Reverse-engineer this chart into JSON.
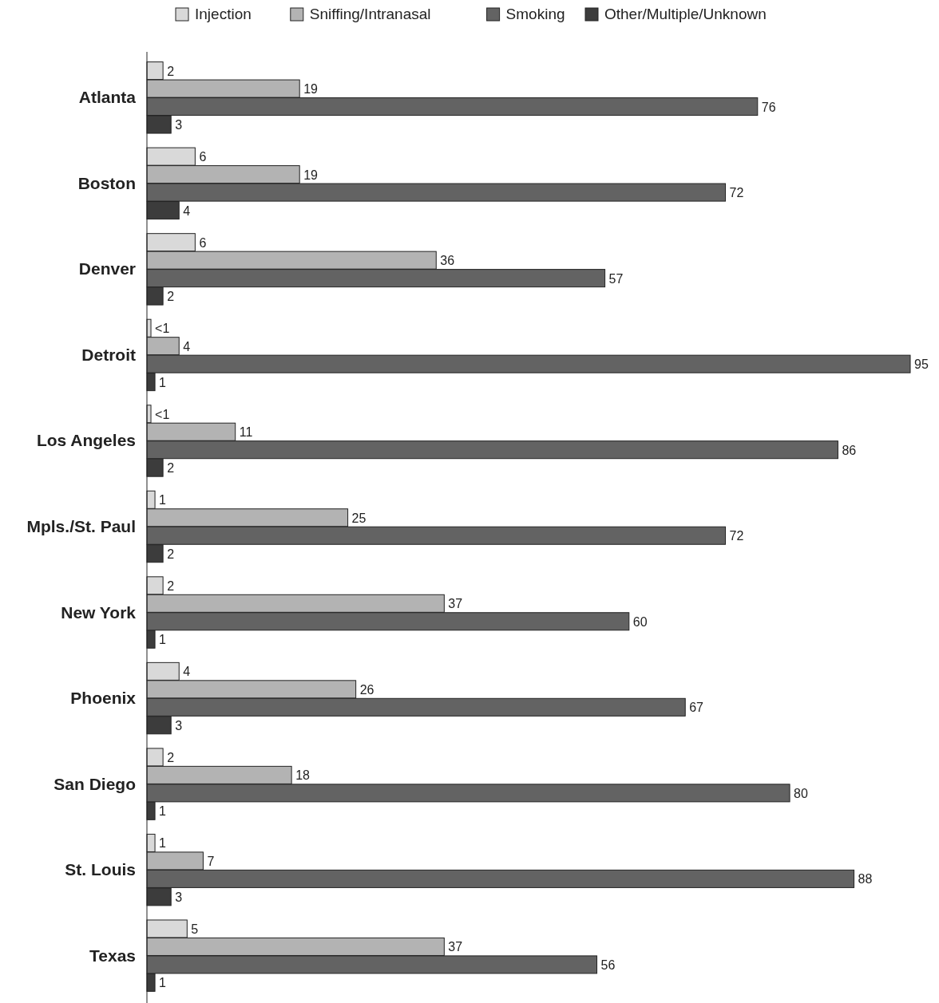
{
  "chart_data": {
    "type": "bar",
    "orientation": "horizontal",
    "legend": "top",
    "categories": [
      "Atlanta",
      "Boston",
      "Denver",
      "Detroit",
      "Los Angeles",
      "Mpls./St. Paul",
      "New York",
      "Phoenix",
      "San Diego",
      "St. Louis",
      "Texas"
    ],
    "series": [
      {
        "name": "Injection",
        "color": "#d9d9d9",
        "values": [
          2,
          6,
          6,
          0.5,
          0.5,
          1,
          2,
          4,
          2,
          1,
          5
        ],
        "value_labels": [
          "2",
          "6",
          "6",
          "<1",
          "<1",
          "1",
          "2",
          "4",
          "2",
          "1",
          "5"
        ]
      },
      {
        "name": "Sniffing/Intranasal",
        "color": "#b3b3b3",
        "values": [
          19,
          19,
          36,
          4,
          11,
          25,
          37,
          26,
          18,
          7,
          37
        ],
        "value_labels": [
          "19",
          "19",
          "36",
          "4",
          "11",
          "25",
          "37",
          "26",
          "18",
          "7",
          "37"
        ]
      },
      {
        "name": "Smoking",
        "color": "#636363",
        "values": [
          76,
          72,
          57,
          95,
          86,
          72,
          60,
          67,
          80,
          88,
          56
        ],
        "value_labels": [
          "76",
          "72",
          "57",
          "95",
          "86",
          "72",
          "60",
          "67",
          "80",
          "88",
          "56"
        ]
      },
      {
        "name": "Other/Multiple/Unknown",
        "color": "#3c3c3c",
        "values": [
          3,
          4,
          2,
          1,
          2,
          2,
          1,
          3,
          1,
          3,
          1
        ],
        "value_labels": [
          "3",
          "4",
          "2",
          "1",
          "2",
          "2",
          "1",
          "3",
          "1",
          "3",
          "1"
        ]
      }
    ]
  }
}
